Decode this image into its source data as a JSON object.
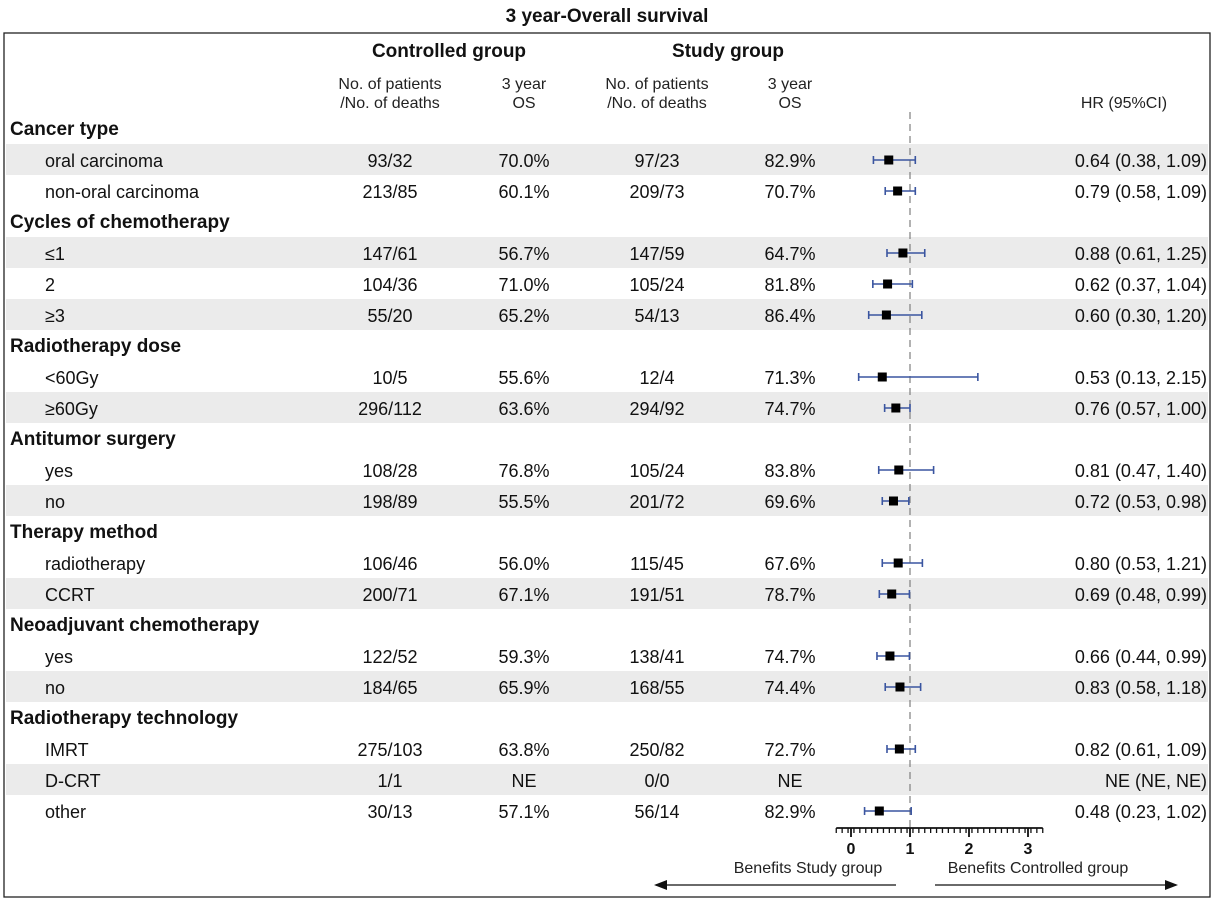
{
  "chart_data": {
    "type": "forest",
    "title": "3 year-Overall survival",
    "groups": {
      "controlled": "Controlled group",
      "study": "Study group"
    },
    "columns": {
      "ctrl_n_line1": "No. of patients",
      "ctrl_n_line2": "/No. of deaths",
      "ctrl_os_line1": "3 year",
      "ctrl_os_line2": "OS",
      "study_n_line1": "No. of patients",
      "study_n_line2": "/No. of deaths",
      "study_os_line1": "3 year",
      "study_os_line2": "OS",
      "hr": "HR (95%CI)"
    },
    "rows": [
      {
        "type": "header",
        "label": "Cancer type"
      },
      {
        "type": "data",
        "label": "oral carcinoma",
        "ctrl_n": "93/32",
        "ctrl_os": "70.0%",
        "study_n": "97/23",
        "study_os": "82.9%",
        "hr_text": "0.64 (0.38, 1.09)",
        "hr": 0.64,
        "lo": 0.38,
        "hi": 1.09
      },
      {
        "type": "data",
        "label": "non-oral carcinoma",
        "ctrl_n": "213/85",
        "ctrl_os": "60.1%",
        "study_n": "209/73",
        "study_os": "70.7%",
        "hr_text": "0.79 (0.58, 1.09)",
        "hr": 0.79,
        "lo": 0.58,
        "hi": 1.09
      },
      {
        "type": "header",
        "label": "Cycles of chemotherapy"
      },
      {
        "type": "data",
        "label": "≤1",
        "ctrl_n": "147/61",
        "ctrl_os": "56.7%",
        "study_n": "147/59",
        "study_os": "64.7%",
        "hr_text": "0.88 (0.61, 1.25)",
        "hr": 0.88,
        "lo": 0.61,
        "hi": 1.25
      },
      {
        "type": "data",
        "label": "2",
        "ctrl_n": "104/36",
        "ctrl_os": "71.0%",
        "study_n": "105/24",
        "study_os": "81.8%",
        "hr_text": "0.62 (0.37, 1.04)",
        "hr": 0.62,
        "lo": 0.37,
        "hi": 1.04
      },
      {
        "type": "data",
        "label": "≥3",
        "ctrl_n": "55/20",
        "ctrl_os": "65.2%",
        "study_n": "54/13",
        "study_os": "86.4%",
        "hr_text": "0.60 (0.30, 1.20)",
        "hr": 0.6,
        "lo": 0.3,
        "hi": 1.2
      },
      {
        "type": "header",
        "label": "Radiotherapy dose"
      },
      {
        "type": "data",
        "label": "<60Gy",
        "ctrl_n": "10/5",
        "ctrl_os": "55.6%",
        "study_n": "12/4",
        "study_os": "71.3%",
        "hr_text": "0.53 (0.13, 2.15)",
        "hr": 0.53,
        "lo": 0.13,
        "hi": 2.15
      },
      {
        "type": "data",
        "label": "≥60Gy",
        "ctrl_n": "296/112",
        "ctrl_os": "63.6%",
        "study_n": "294/92",
        "study_os": "74.7%",
        "hr_text": "0.76 (0.57, 1.00)",
        "hr": 0.76,
        "lo": 0.57,
        "hi": 1.0
      },
      {
        "type": "header",
        "label": "Antitumor surgery"
      },
      {
        "type": "data",
        "label": "yes",
        "ctrl_n": "108/28",
        "ctrl_os": "76.8%",
        "study_n": "105/24",
        "study_os": "83.8%",
        "hr_text": "0.81 (0.47, 1.40)",
        "hr": 0.81,
        "lo": 0.47,
        "hi": 1.4
      },
      {
        "type": "data",
        "label": "no",
        "ctrl_n": "198/89",
        "ctrl_os": "55.5%",
        "study_n": "201/72",
        "study_os": "69.6%",
        "hr_text": "0.72 (0.53, 0.98)",
        "hr": 0.72,
        "lo": 0.53,
        "hi": 0.98
      },
      {
        "type": "header",
        "label": "Therapy method"
      },
      {
        "type": "data",
        "label": "radiotherapy",
        "ctrl_n": "106/46",
        "ctrl_os": "56.0%",
        "study_n": "115/45",
        "study_os": "67.6%",
        "hr_text": "0.80 (0.53, 1.21)",
        "hr": 0.8,
        "lo": 0.53,
        "hi": 1.21
      },
      {
        "type": "data",
        "label": "CCRT",
        "ctrl_n": "200/71",
        "ctrl_os": "67.1%",
        "study_n": "191/51",
        "study_os": "78.7%",
        "hr_text": "0.69 (0.48, 0.99)",
        "hr": 0.69,
        "lo": 0.48,
        "hi": 0.99
      },
      {
        "type": "header",
        "label": "Neoadjuvant chemotherapy"
      },
      {
        "type": "data",
        "label": "yes",
        "ctrl_n": "122/52",
        "ctrl_os": "59.3%",
        "study_n": "138/41",
        "study_os": "74.7%",
        "hr_text": "0.66 (0.44, 0.99)",
        "hr": 0.66,
        "lo": 0.44,
        "hi": 0.99
      },
      {
        "type": "data",
        "label": "no",
        "ctrl_n": "184/65",
        "ctrl_os": "65.9%",
        "study_n": "168/55",
        "study_os": "74.4%",
        "hr_text": "0.83 (0.58, 1.18)",
        "hr": 0.83,
        "lo": 0.58,
        "hi": 1.18
      },
      {
        "type": "header",
        "label": "Radiotherapy technology"
      },
      {
        "type": "data",
        "label": "IMRT",
        "ctrl_n": "275/103",
        "ctrl_os": "63.8%",
        "study_n": "250/82",
        "study_os": "72.7%",
        "hr_text": "0.82 (0.61, 1.09)",
        "hr": 0.82,
        "lo": 0.61,
        "hi": 1.09
      },
      {
        "type": "data",
        "label": "D-CRT",
        "ctrl_n": "1/1",
        "ctrl_os": "NE",
        "study_n": "0/0",
        "study_os": "NE",
        "hr_text": "NE (NE, NE)",
        "hr": null,
        "lo": null,
        "hi": null
      },
      {
        "type": "data",
        "label": "other",
        "ctrl_n": "30/13",
        "ctrl_os": "57.1%",
        "study_n": "56/14",
        "study_os": "82.9%",
        "hr_text": "0.48 (0.23, 1.02)",
        "hr": 0.48,
        "lo": 0.23,
        "hi": 1.02
      }
    ],
    "x_axis": {
      "ticks": [
        0,
        1,
        2,
        3
      ],
      "range": [
        -0.25,
        3.25
      ],
      "minor_step": 0.1,
      "reference_line": 1
    },
    "direction_labels": {
      "left": "Benefits Study group",
      "right": "Benefits Controlled group"
    },
    "colors": {
      "ci_line": "#3a55a0",
      "point": "#000000",
      "row_stripe": "#ebebeb",
      "reference_line": "#888888"
    }
  }
}
